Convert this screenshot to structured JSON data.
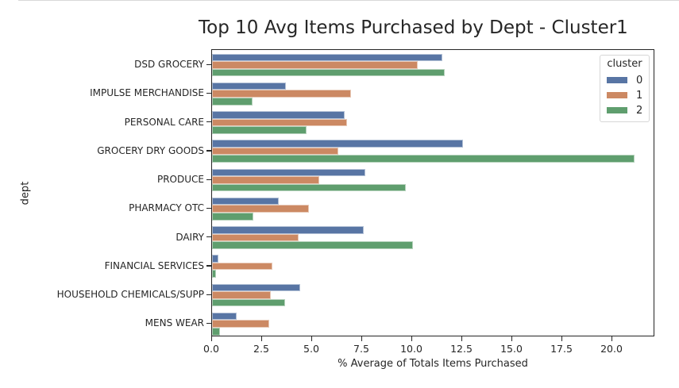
{
  "chart_data": {
    "type": "bar",
    "orientation": "horizontal",
    "title": "Top 10 Avg Items Purchased by Dept - Cluster1",
    "xlabel": "% Average of Totals Items Purchased",
    "ylabel": "dept",
    "xlim": [
      0,
      22.1
    ],
    "xticks": [
      "0.0",
      "2.5",
      "5.0",
      "7.5",
      "10.0",
      "12.5",
      "15.0",
      "17.5",
      "20.0"
    ],
    "xtick_values": [
      0,
      2.5,
      5,
      7.5,
      10,
      12.5,
      15,
      17.5,
      20
    ],
    "grid": false,
    "legend_title": "cluster",
    "legend_position": "upper right",
    "categories": [
      "DSD GROCERY",
      "IMPULSE MERCHANDISE",
      "PERSONAL CARE",
      "GROCERY DRY GOODS",
      "PRODUCE",
      "PHARMACY OTC",
      "DAIRY",
      "FINANCIAL SERVICES",
      "HOUSEHOLD CHEMICALS/SUPP",
      "MENS WEAR"
    ],
    "series": [
      {
        "name": "0",
        "color": "#5875a4",
        "values": [
          11.52,
          3.68,
          6.63,
          12.55,
          7.66,
          3.32,
          7.59,
          0.33,
          4.4,
          1.23
        ]
      },
      {
        "name": "1",
        "color": "#cc8963",
        "values": [
          10.29,
          6.94,
          6.75,
          6.3,
          5.37,
          4.84,
          4.34,
          3.02,
          2.92,
          2.85
        ]
      },
      {
        "name": "2",
        "color": "#5f9e6e",
        "values": [
          11.64,
          2.02,
          4.74,
          21.1,
          9.67,
          2.06,
          10.04,
          0.2,
          3.65,
          0.4
        ]
      }
    ]
  }
}
